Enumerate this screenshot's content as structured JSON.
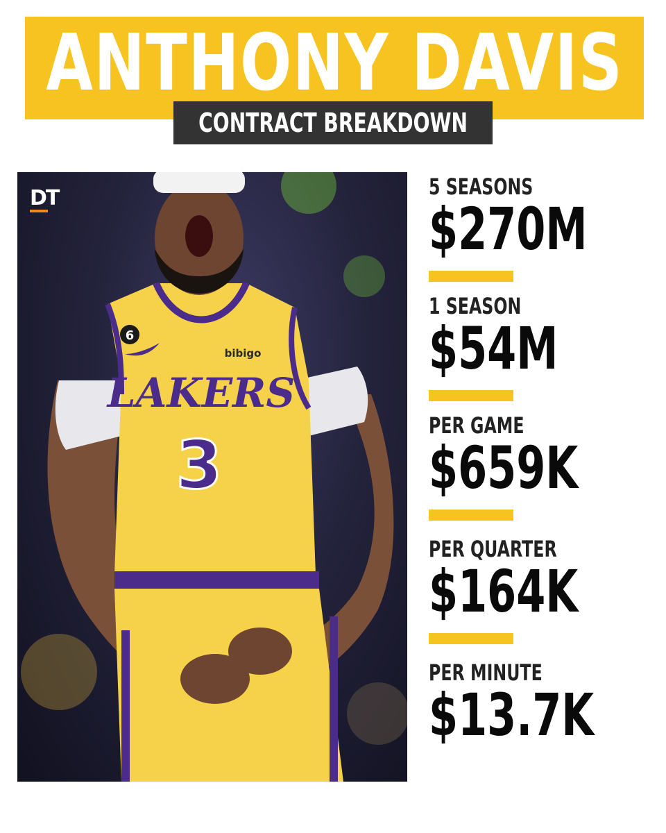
{
  "header": {
    "title": "ANTHONY DAVIS",
    "subtitle": "CONTRACT BREAKDOWN"
  },
  "photo": {
    "watermark": "DT",
    "jersey_text": "LAKERS",
    "jersey_number": "3",
    "patch_number": "6",
    "sponsor": "bibigo"
  },
  "stats": [
    {
      "label": "5 SEASONS",
      "value": "$270M"
    },
    {
      "label": "1 SEASON",
      "value": "$54M"
    },
    {
      "label": "PER GAME",
      "value": "$659K"
    },
    {
      "label": "PER QUARTER",
      "value": "$164K"
    },
    {
      "label": "PER MINUTE",
      "value": "$13.7K"
    }
  ],
  "colors": {
    "accent_yellow": "#f7c320",
    "dark_band": "#333333",
    "jersey_purple": "#4b2c8a",
    "logo_accent": "#f08a1c"
  },
  "icons": {
    "logo": "dt-logo",
    "swoosh": "swoosh-icon"
  }
}
